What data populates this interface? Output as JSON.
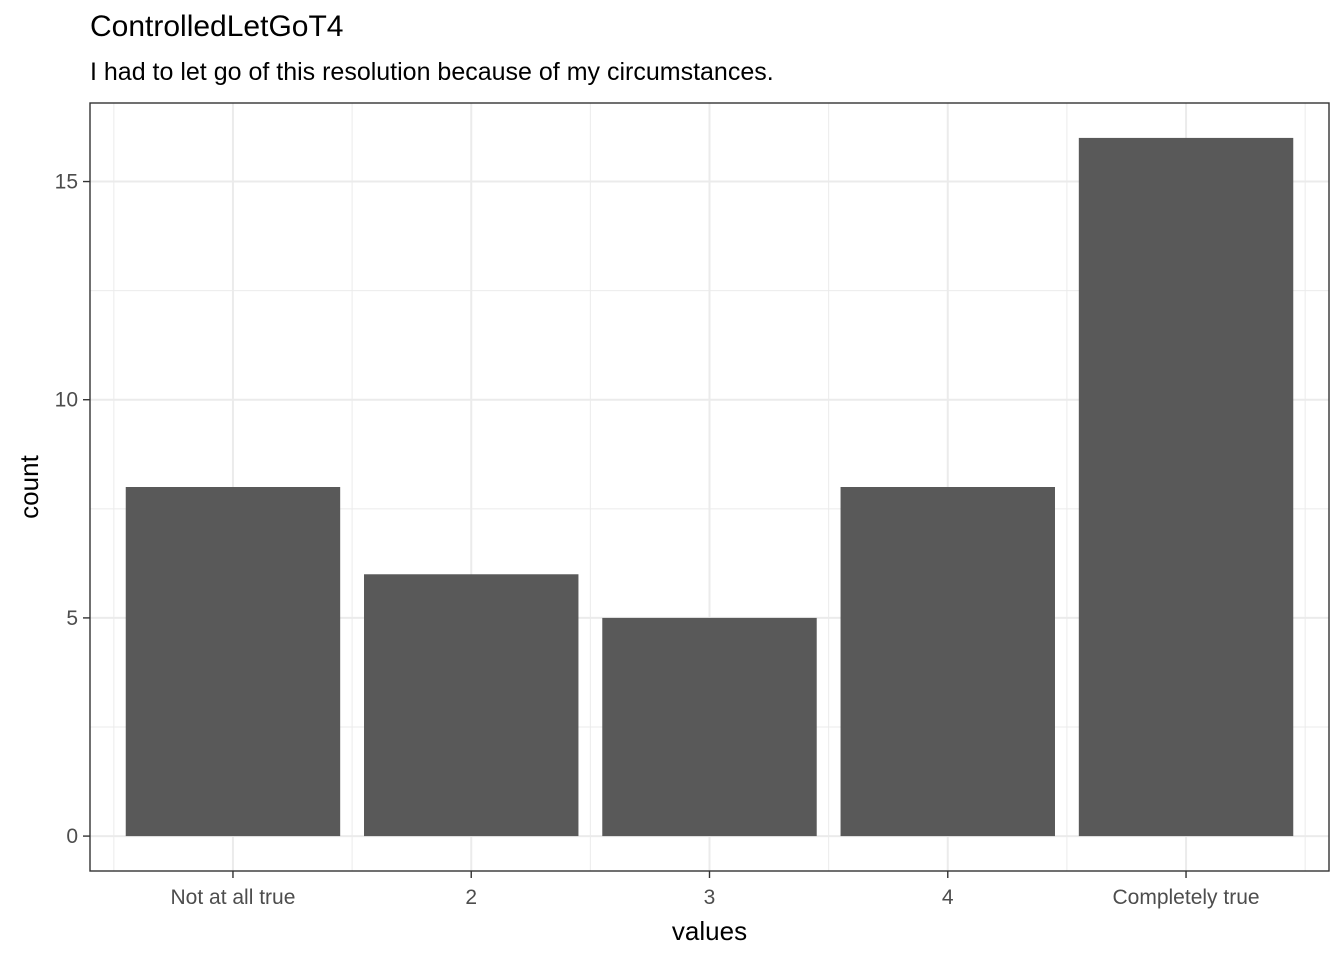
{
  "chart_data": {
    "type": "bar",
    "title": "ControlledLetGoT4",
    "subtitle": "I had to let go of this resolution because of my circumstances.",
    "xlabel": "values",
    "ylabel": "count",
    "categories": [
      "Not at all true",
      "2",
      "3",
      "4",
      "Completely true"
    ],
    "values": [
      8,
      6,
      5,
      8,
      16
    ],
    "ylim": [
      -0.8,
      16.8
    ],
    "yticks": [
      0,
      5,
      10,
      15
    ],
    "grid": true,
    "bar_color": "#595959",
    "grid_color": "#ebebeb"
  }
}
